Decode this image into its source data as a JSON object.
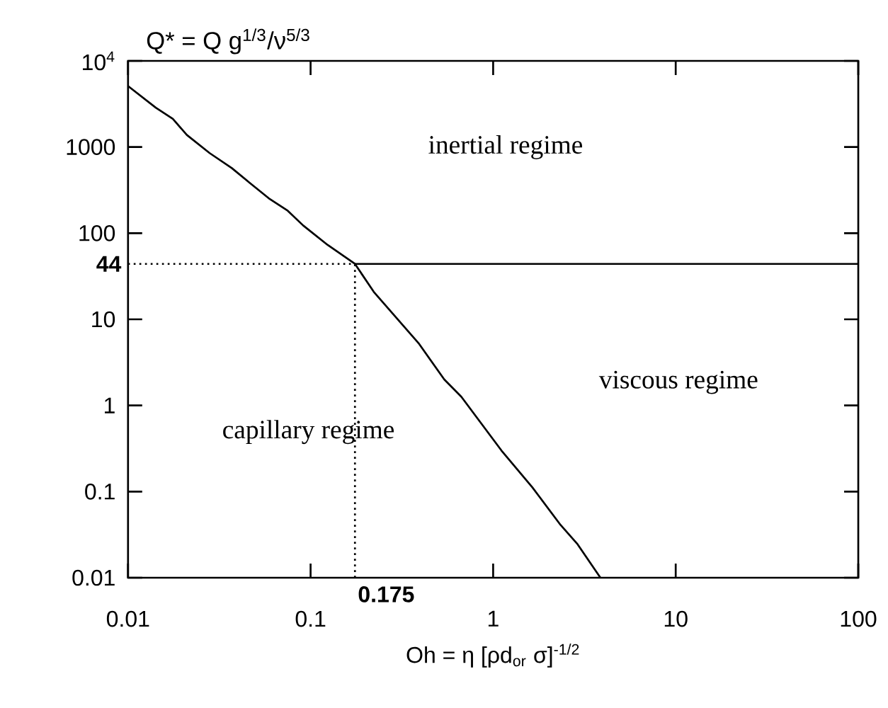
{
  "chart_data": {
    "type": "line",
    "ylabel": "Q* = Q g$^{1/3}$/ν$^{5/3}$",
    "xlabel": "Oh = η [ρd$_{or}$ σ]$^{-1/2}$",
    "log": "xy",
    "xlim": [
      0.01,
      100
    ],
    "ylim": [
      0.01,
      10000
    ],
    "xticks": [
      0.01,
      0.1,
      1,
      10,
      100
    ],
    "yticks": [
      {
        "value": 10000,
        "label": "10$^{4}$"
      },
      1000,
      100,
      10,
      1,
      0.1,
      0.01
    ],
    "series": [
      {
        "color": "#000000",
        "x": [
          0.01,
          0.0142,
          0.0176,
          0.021,
          0.028,
          0.037,
          0.046,
          0.059,
          0.075,
          0.091,
          0.124,
          0.175,
          0.222,
          0.39,
          0.54,
          0.67,
          1.11,
          1.64,
          2.34,
          2.9,
          3.87
        ],
        "values": [
          5100,
          2860,
          2120,
          1380,
          850,
          570,
          390,
          254,
          182,
          123,
          73,
          44,
          20.8,
          5.3,
          2.0,
          1.26,
          0.3,
          0.112,
          0.041,
          0.0245,
          0.01
        ]
      },
      {
        "color": "#000000",
        "x": [
          0.175,
          100
        ],
        "values": [
          44,
          44
        ]
      }
    ],
    "ref_lines": [
      {
        "axis": "y",
        "value": 44,
        "label": "44",
        "line_style": "dotted"
      },
      {
        "axis": "x",
        "value": 0.175,
        "label": "0.175",
        "line_style": "dotted"
      }
    ],
    "annotations": [
      "inertial regime",
      "viscous regime",
      "capillary regime"
    ],
    "grid": false,
    "line_style": "solid",
    "marker": "none"
  }
}
